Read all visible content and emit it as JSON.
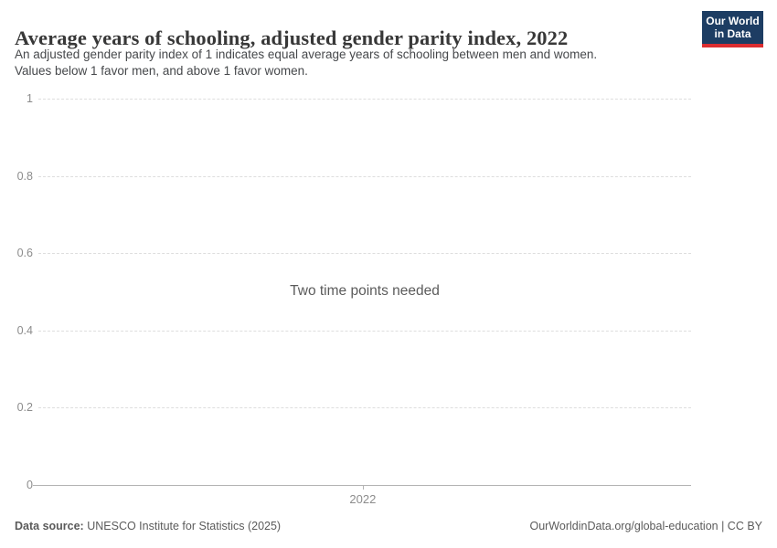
{
  "header": {
    "title": "Average years of schooling, adjusted gender parity index, 2022",
    "subtitle_lines": [
      "An adjusted gender parity index of 1 indicates equal average years of schooling between men and women.",
      "Values below 1 favor men, and above 1 favor women."
    ],
    "logo": {
      "line1": "Our World",
      "line2": "in Data"
    }
  },
  "chart_data": {
    "type": "line",
    "title": "Average years of schooling, adjusted gender parity index, 2022",
    "series": [],
    "x": [
      2022
    ],
    "xticks": [
      "2022"
    ],
    "xtick_fraction": 0.497,
    "yticks": [
      0,
      0.2,
      0.4,
      0.6,
      0.8,
      1
    ],
    "ytick_labels_top_to_bottom": [
      "1",
      "0.8",
      "0.6",
      "0.4",
      "0.2",
      "0"
    ],
    "ylim": [
      0,
      1
    ],
    "xlabel": "",
    "ylabel": "",
    "grid": "horizontal-dashed",
    "legend": "none",
    "empty_message": "Two time points needed"
  },
  "footer": {
    "source_label": "Data source:",
    "source_text": "UNESCO Institute for Statistics (2025)",
    "link_text": "OurWorldinData.org/global-education | CC BY"
  },
  "colors": {
    "logo_background": "#1d3d63",
    "logo_accent": "#dc2d30",
    "title_text": "#383838",
    "subtitle_text": "#46484b",
    "tick_label": "#8c8c8c",
    "gridline": "#dedede",
    "axis_line": "#b3b3b3",
    "footer_text": "#5b5b5b",
    "message_text": "#5b5b5b"
  }
}
